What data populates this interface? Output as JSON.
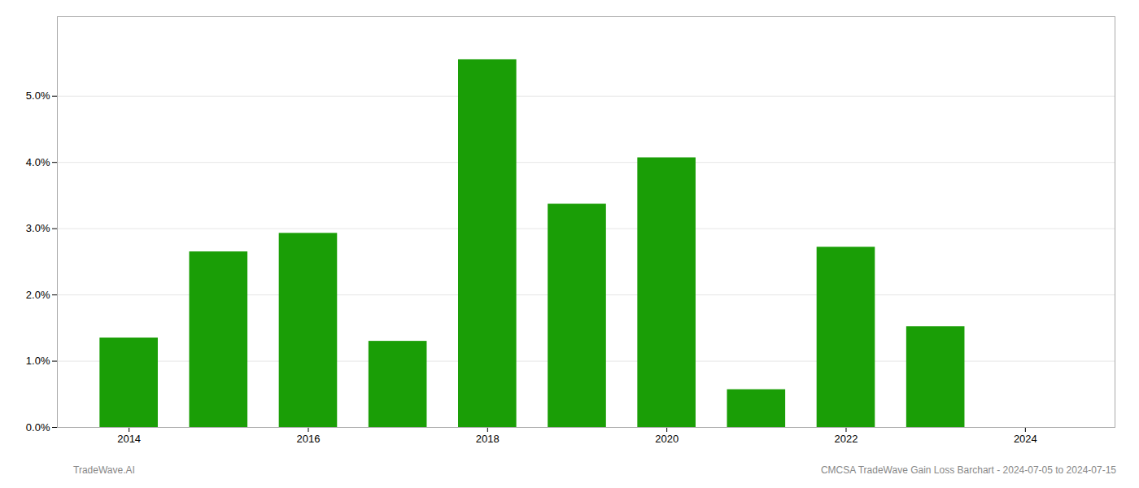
{
  "chart_data": {
    "type": "bar",
    "x": [
      2014,
      2015,
      2016,
      2017,
      2018,
      2019,
      2020,
      2021,
      2022,
      2023
    ],
    "values": [
      0.0135,
      0.0265,
      0.0293,
      0.013,
      0.0555,
      0.0337,
      0.0407,
      0.0057,
      0.0272,
      0.0152
    ],
    "color": "#1a9e06",
    "xlim": [
      2013.2,
      2025.0
    ],
    "xticks": [
      2014,
      2016,
      2018,
      2020,
      2022,
      2024
    ],
    "ylim": [
      0,
      0.062
    ],
    "yticks": [
      {
        "value": 0.0,
        "label": "0.0%"
      },
      {
        "value": 0.01,
        "label": "1.0%"
      },
      {
        "value": 0.02,
        "label": "2.0%"
      },
      {
        "value": 0.03,
        "label": "3.0%"
      },
      {
        "value": 0.04,
        "label": "4.0%"
      },
      {
        "value": 0.05,
        "label": "5.0%"
      }
    ],
    "grid": true,
    "annotations": [
      "TradeWave.AI",
      "CMCSA TradeWave Gain Loss Barchart - 2024-07-05 to 2024-07-15"
    ]
  }
}
